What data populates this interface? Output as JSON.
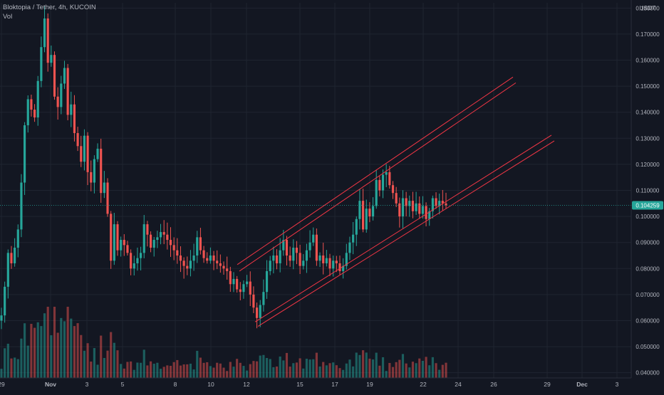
{
  "header": {
    "symbol_line": "Bloktopia / Tether, 4h, KUCOIN",
    "volume_label": "Vol"
  },
  "colors": {
    "background": "#131722",
    "grid": "#1f2430",
    "up": "#26a69a",
    "down": "#ef5350",
    "channel": "#f23645",
    "price_line": "#26a69a",
    "axis_text": "#b2b5be"
  },
  "chart_data": {
    "type": "candlestick",
    "title": "Bloktopia / Tether, 4h, KUCOIN",
    "ylabel": "USDT",
    "y_ticks": [
      "0.180000",
      "0.170000",
      "0.160000",
      "0.150000",
      "0.140000",
      "0.130000",
      "0.120000",
      "0.110000",
      "0.100000",
      "0.090000",
      "0.080000",
      "0.070000",
      "0.060000",
      "0.050000",
      "0.040000"
    ],
    "ylim": [
      0.038,
      0.182
    ],
    "x_ticks": [
      "29",
      "Nov",
      "3",
      "5",
      "8",
      "10",
      "12",
      "15",
      "17",
      "19",
      "22",
      "24",
      "26",
      "29",
      "Dec",
      "3"
    ],
    "last_price": "0.104259",
    "last_price_value": 0.104259,
    "volume_panel": true,
    "candles_close": [
      0.062,
      0.073,
      0.086,
      0.082,
      0.088,
      0.095,
      0.113,
      0.135,
      0.145,
      0.141,
      0.138,
      0.152,
      0.165,
      0.176,
      0.159,
      0.162,
      0.146,
      0.142,
      0.151,
      0.157,
      0.139,
      0.143,
      0.132,
      0.127,
      0.121,
      0.131,
      0.117,
      0.113,
      0.122,
      0.126,
      0.109,
      0.113,
      0.101,
      0.083,
      0.097,
      0.087,
      0.091,
      0.089,
      0.086,
      0.08,
      0.082,
      0.084,
      0.086,
      0.097,
      0.093,
      0.088,
      0.091,
      0.092,
      0.094,
      0.093,
      0.091,
      0.089,
      0.087,
      0.085,
      0.083,
      0.081,
      0.08,
      0.083,
      0.085,
      0.092,
      0.087,
      0.084,
      0.083,
      0.085,
      0.083,
      0.082,
      0.081,
      0.08,
      0.079,
      0.074,
      0.076,
      0.072,
      0.071,
      0.074,
      0.075,
      0.07,
      0.065,
      0.061,
      0.066,
      0.071,
      0.079,
      0.083,
      0.085,
      0.082,
      0.087,
      0.091,
      0.085,
      0.083,
      0.088,
      0.086,
      0.081,
      0.083,
      0.087,
      0.09,
      0.093,
      0.083,
      0.085,
      0.082,
      0.084,
      0.08,
      0.083,
      0.082,
      0.079,
      0.081,
      0.086,
      0.09,
      0.093,
      0.099,
      0.106,
      0.095,
      0.103,
      0.1,
      0.104,
      0.114,
      0.11,
      0.116,
      0.117,
      0.112,
      0.109,
      0.105,
      0.1,
      0.107,
      0.104,
      0.106,
      0.102,
      0.105,
      0.101,
      0.104,
      0.099,
      0.102,
      0.107,
      0.104,
      0.106,
      0.105,
      0.1043
    ]
  }
}
